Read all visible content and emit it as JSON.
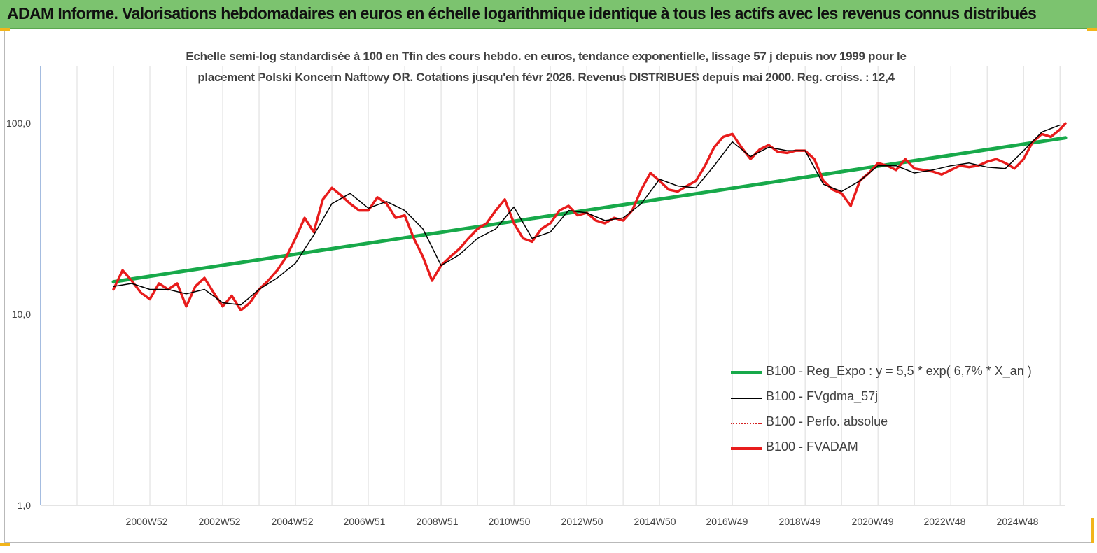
{
  "banner": {
    "title": "ADAM Informe. Valorisations hebdomadaires en euros en échelle logarithmique identique à tous les actifs avec les revenus connus distribués"
  },
  "colors": {
    "banner": "#7cc36f",
    "regression": "#17a94a",
    "smoothed": "#000000",
    "absolute": "#d42020",
    "adam": "#e81c1c",
    "corner": "#f2b51a"
  },
  "chart_data": {
    "type": "line",
    "title_lines": [
      "Echelle semi-log standardisée à 100 en Tfin des cours hebdo. en euros, tendance exponentielle, lissage 57 j depuis nov 1999 pour le",
      "placement Polski Koncern Naftowy OR. Cotations jusqu'en févr 2026. Revenus DISTRIBUES depuis mai 2000. Reg. croiss. : 12,4"
    ],
    "y_scale": "log",
    "ylim": [
      1,
      200
    ],
    "y_ticks": [
      "1,0",
      "10,0",
      "100,0"
    ],
    "xlim": [
      1998.0,
      2026.15
    ],
    "x_ticks": [
      {
        "label": "2000W52",
        "value": 2000.99
      },
      {
        "label": "2002W52",
        "value": 2002.99
      },
      {
        "label": "2004W52",
        "value": 2004.99
      },
      {
        "label": "2006W51",
        "value": 2006.97
      },
      {
        "label": "2008W51",
        "value": 2008.97
      },
      {
        "label": "2010W50",
        "value": 2010.95
      },
      {
        "label": "2012W50",
        "value": 2012.95
      },
      {
        "label": "2014W50",
        "value": 2014.95
      },
      {
        "label": "2016W49",
        "value": 2016.93
      },
      {
        "label": "2018W49",
        "value": 2018.93
      },
      {
        "label": "2020W49",
        "value": 2020.93
      },
      {
        "label": "2022W48",
        "value": 2022.91
      },
      {
        "label": "2024W48",
        "value": 2024.91
      }
    ],
    "grid": "vertical",
    "legend_position": "bottom-right",
    "series": [
      {
        "name": "B100 - Reg_Expo : y = 5,5 * exp( 6,7% *  X_an )",
        "style": "regression",
        "x": [
          2000.0,
          2026.15
        ],
        "y": [
          14.8,
          84.0
        ]
      },
      {
        "name": "B100 - FVgdma_57j",
        "style": "smoothed",
        "x": [
          2000.0,
          2000.5,
          2001.0,
          2001.5,
          2002.0,
          2002.5,
          2003.0,
          2003.5,
          2004.0,
          2004.5,
          2005.0,
          2005.5,
          2006.0,
          2006.5,
          2007.0,
          2007.5,
          2008.0,
          2008.5,
          2009.0,
          2009.5,
          2010.0,
          2010.5,
          2011.0,
          2011.5,
          2012.0,
          2012.5,
          2013.0,
          2013.5,
          2014.0,
          2014.5,
          2015.0,
          2015.5,
          2016.0,
          2016.5,
          2017.0,
          2017.5,
          2018.0,
          2018.5,
          2019.0,
          2019.5,
          2020.0,
          2020.5,
          2021.0,
          2021.5,
          2022.0,
          2022.5,
          2023.0,
          2023.5,
          2024.0,
          2024.5,
          2025.0,
          2025.5,
          2026.0
        ],
        "y": [
          14.0,
          14.5,
          13.5,
          13.5,
          12.8,
          13.5,
          11.5,
          11.2,
          13.5,
          15.5,
          18.5,
          26.0,
          38.0,
          43.0,
          36.0,
          39.0,
          35.0,
          28.0,
          18.0,
          20.5,
          25.0,
          28.0,
          36.5,
          25.0,
          27.0,
          35.0,
          34.0,
          31.0,
          32.0,
          38.0,
          51.0,
          47.0,
          46.0,
          60.0,
          80.0,
          67.0,
          75.0,
          72.0,
          72.0,
          48.0,
          44.0,
          50.0,
          60.0,
          60.0,
          55.0,
          57.0,
          60.0,
          62.0,
          59.0,
          58.0,
          72.0,
          90.0,
          98.0
        ]
      },
      {
        "name": "B100 - Perfo. absolue",
        "style": "absolute",
        "x": [
          2000.0,
          2000.25,
          2000.5,
          2000.75,
          2001.0,
          2001.25,
          2001.5,
          2001.75,
          2002.0,
          2002.25,
          2002.5,
          2002.75,
          2003.0,
          2003.25,
          2003.5,
          2003.75,
          2004.0,
          2004.25,
          2004.5,
          2004.75,
          2005.0,
          2005.25,
          2005.5,
          2005.75,
          2006.0,
          2006.25,
          2006.5,
          2006.75,
          2007.0,
          2007.25,
          2007.5,
          2007.75,
          2008.0,
          2008.25,
          2008.5,
          2008.75,
          2009.0,
          2009.25,
          2009.5,
          2009.75,
          2010.0,
          2010.25,
          2010.5,
          2010.75,
          2011.0,
          2011.25,
          2011.5,
          2011.75,
          2012.0,
          2012.25,
          2012.5,
          2012.75,
          2013.0,
          2013.25,
          2013.5,
          2013.75,
          2014.0,
          2014.25,
          2014.5,
          2014.75,
          2015.0,
          2015.25,
          2015.5,
          2015.75,
          2016.0,
          2016.25,
          2016.5,
          2016.75,
          2017.0,
          2017.25,
          2017.5,
          2017.75,
          2018.0,
          2018.25,
          2018.5,
          2018.75,
          2019.0,
          2019.25,
          2019.5,
          2019.75,
          2020.0,
          2020.25,
          2020.5,
          2020.75,
          2021.0,
          2021.25,
          2021.5,
          2021.75,
          2022.0,
          2022.25,
          2022.5,
          2022.75,
          2023.0,
          2023.25,
          2023.5,
          2023.75,
          2024.0,
          2024.25,
          2024.5,
          2024.75,
          2025.0,
          2025.25,
          2025.5,
          2025.75,
          2026.0,
          2026.15
        ],
        "y": [
          13.5,
          17.0,
          15.0,
          13.0,
          12.0,
          14.5,
          13.5,
          14.5,
          11.0,
          14.0,
          15.5,
          13.0,
          11.0,
          12.5,
          10.5,
          11.5,
          13.5,
          15.0,
          17.0,
          20.0,
          25.0,
          32.0,
          27.0,
          40.0,
          46.0,
          42.0,
          38.0,
          35.0,
          35.0,
          41.0,
          38.0,
          32.0,
          33.0,
          25.0,
          20.0,
          15.0,
          18.0,
          20.0,
          22.0,
          25.0,
          28.0,
          30.0,
          35.0,
          40.0,
          30.0,
          25.0,
          24.0,
          28.0,
          30.0,
          35.0,
          37.0,
          33.0,
          34.0,
          31.0,
          30.0,
          32.0,
          31.0,
          35.0,
          45.0,
          55.0,
          50.0,
          45.0,
          44.0,
          47.0,
          50.0,
          60.0,
          75.0,
          85.0,
          88.0,
          75.0,
          65.0,
          73.0,
          77.0,
          71.0,
          70.0,
          72.0,
          72.0,
          65.0,
          50.0,
          45.0,
          43.0,
          37.0,
          50.0,
          55.0,
          62.0,
          60.0,
          57.0,
          65.0,
          58.0,
          57.0,
          56.0,
          54.0,
          57.0,
          60.0,
          59.0,
          60.0,
          63.0,
          65.0,
          62.0,
          58.0,
          65.0,
          80.0,
          88.0,
          85.0,
          93.0,
          100.0
        ]
      },
      {
        "name": "B100 - FVADAM",
        "style": "adam",
        "x": [
          2000.0,
          2000.25,
          2000.5,
          2000.75,
          2001.0,
          2001.25,
          2001.5,
          2001.75,
          2002.0,
          2002.25,
          2002.5,
          2002.75,
          2003.0,
          2003.25,
          2003.5,
          2003.75,
          2004.0,
          2004.25,
          2004.5,
          2004.75,
          2005.0,
          2005.25,
          2005.5,
          2005.75,
          2006.0,
          2006.25,
          2006.5,
          2006.75,
          2007.0,
          2007.25,
          2007.5,
          2007.75,
          2008.0,
          2008.25,
          2008.5,
          2008.75,
          2009.0,
          2009.25,
          2009.5,
          2009.75,
          2010.0,
          2010.25,
          2010.5,
          2010.75,
          2011.0,
          2011.25,
          2011.5,
          2011.75,
          2012.0,
          2012.25,
          2012.5,
          2012.75,
          2013.0,
          2013.25,
          2013.5,
          2013.75,
          2014.0,
          2014.25,
          2014.5,
          2014.75,
          2015.0,
          2015.25,
          2015.5,
          2015.75,
          2016.0,
          2016.25,
          2016.5,
          2016.75,
          2017.0,
          2017.25,
          2017.5,
          2017.75,
          2018.0,
          2018.25,
          2018.5,
          2018.75,
          2019.0,
          2019.25,
          2019.5,
          2019.75,
          2020.0,
          2020.25,
          2020.5,
          2020.75,
          2021.0,
          2021.25,
          2021.5,
          2021.75,
          2022.0,
          2022.25,
          2022.5,
          2022.75,
          2023.0,
          2023.25,
          2023.5,
          2023.75,
          2024.0,
          2024.25,
          2024.5,
          2024.75,
          2025.0,
          2025.25,
          2025.5,
          2025.75,
          2026.0,
          2026.15
        ],
        "y": [
          13.5,
          17.0,
          15.0,
          13.0,
          12.0,
          14.5,
          13.5,
          14.5,
          11.0,
          14.0,
          15.5,
          13.0,
          11.0,
          12.5,
          10.5,
          11.5,
          13.5,
          15.0,
          17.0,
          20.0,
          25.0,
          32.0,
          27.0,
          40.0,
          46.0,
          42.0,
          38.0,
          35.0,
          35.0,
          41.0,
          38.0,
          32.0,
          33.0,
          25.0,
          20.0,
          15.0,
          18.0,
          20.0,
          22.0,
          25.0,
          28.0,
          30.0,
          35.0,
          40.0,
          30.0,
          25.0,
          24.0,
          28.0,
          30.0,
          35.0,
          37.0,
          33.0,
          34.0,
          31.0,
          30.0,
          32.0,
          31.0,
          35.0,
          45.0,
          55.0,
          50.0,
          45.0,
          44.0,
          47.0,
          50.0,
          60.0,
          75.0,
          85.0,
          88.0,
          75.0,
          65.0,
          73.0,
          77.0,
          71.0,
          70.0,
          72.0,
          72.0,
          65.0,
          50.0,
          45.0,
          43.0,
          37.0,
          50.0,
          55.0,
          62.0,
          60.0,
          57.0,
          65.0,
          58.0,
          57.0,
          56.0,
          54.0,
          57.0,
          60.0,
          59.0,
          60.0,
          63.0,
          65.0,
          62.0,
          58.0,
          65.0,
          80.0,
          88.0,
          85.0,
          93.0,
          100.0
        ]
      }
    ]
  }
}
